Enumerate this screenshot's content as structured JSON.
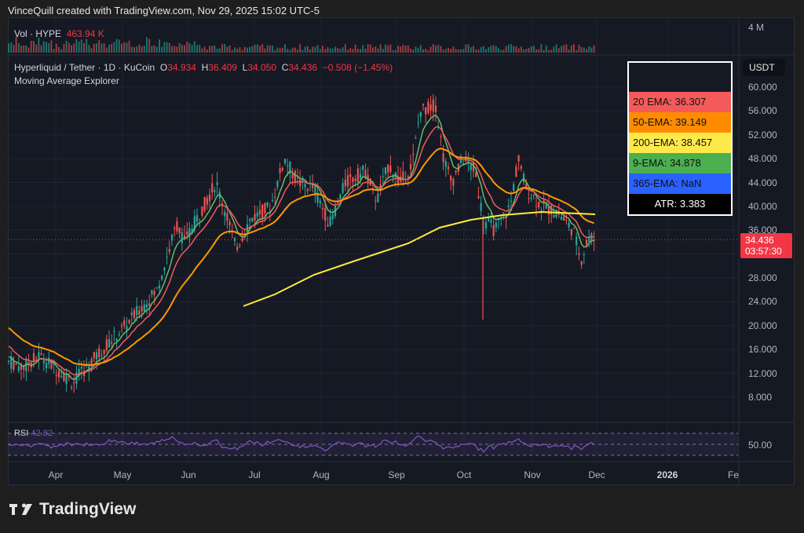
{
  "credit": "VinceQuill created with TradingView.com, Nov 29, 2025 15:02 UTC-5",
  "volume": {
    "label": "Vol · HYPE",
    "value": "463.94 K",
    "axis_label": "4 M"
  },
  "symbol": {
    "pair": "Hyperliquid / Tether · 1D · KuCoin",
    "open_label": "O",
    "open": "34.934",
    "high_label": "H",
    "high": "36.409",
    "low_label": "L",
    "low": "34.050",
    "close_label": "C",
    "close": "34.436",
    "change": "−0.508 (−1.45%)"
  },
  "study": "Moving Average Explorer",
  "ema_table": [
    {
      "label": "20 EMA: 36.307",
      "bg": "#f55a5a"
    },
    {
      "label": "50-EMA: 39.149",
      "bg": "#ff8c00"
    },
    {
      "label": "200-EMA: 38.457",
      "bg": "#ffe94a"
    },
    {
      "label": "9-EMA: 34.878",
      "bg": "#4caf50"
    },
    {
      "label": "365-EMA: NaN",
      "bg": "#2962ff"
    },
    {
      "label": "ATR: 3.383",
      "bg": "#000000"
    }
  ],
  "currency": "USDT",
  "price_tag": {
    "price": "34.436",
    "countdown": "03:57:30"
  },
  "rsi": {
    "label": "RSI",
    "value": "42.82",
    "axis_label": "50.00"
  },
  "brand": "TradingView",
  "colors": {
    "up": "#26a69a",
    "down": "#ef5350",
    "ema9": "#66bb6a",
    "ema20": "#f55a5a",
    "ema50": "#ff9800",
    "ema200": "#ffeb3b",
    "rsi": "#7e57c2"
  },
  "chart_data": {
    "type": "candlestick",
    "title": "Hyperliquid / Tether · 1D · KuCoin",
    "xlabel": "",
    "ylabel": "USDT",
    "x_ticks": [
      "Apr",
      "May",
      "Jun",
      "Jul",
      "Aug",
      "Sep",
      "Oct",
      "Nov",
      "Dec",
      "2026",
      "Fe"
    ],
    "y_ticks": [
      8,
      12,
      16,
      20,
      24,
      28,
      32,
      36,
      40,
      44,
      48,
      52,
      56,
      60
    ],
    "ylim": [
      5,
      63
    ],
    "grid": true,
    "last_price": 34.436,
    "approx_close_by_month_start": {
      "Mar": 14,
      "Apr": 13,
      "May": 22,
      "Jun": 38,
      "Jul": 37,
      "Aug": 40,
      "Sep": 45,
      "Oct": 44,
      "Nov": 39,
      "Dec": 34.4
    },
    "series": [
      {
        "name": "20 EMA",
        "last": 36.307
      },
      {
        "name": "50-EMA",
        "last": 39.149
      },
      {
        "name": "200-EMA",
        "last": 38.457
      },
      {
        "name": "9-EMA",
        "last": 34.878
      },
      {
        "name": "365-EMA",
        "last": null
      }
    ],
    "annotations": [
      "ATR: 3.383",
      "High ~59 mid-Sep",
      "Wick low ~21 early Oct"
    ],
    "rsi": {
      "last": 42.82,
      "bands": [
        30,
        50,
        70
      ]
    }
  }
}
